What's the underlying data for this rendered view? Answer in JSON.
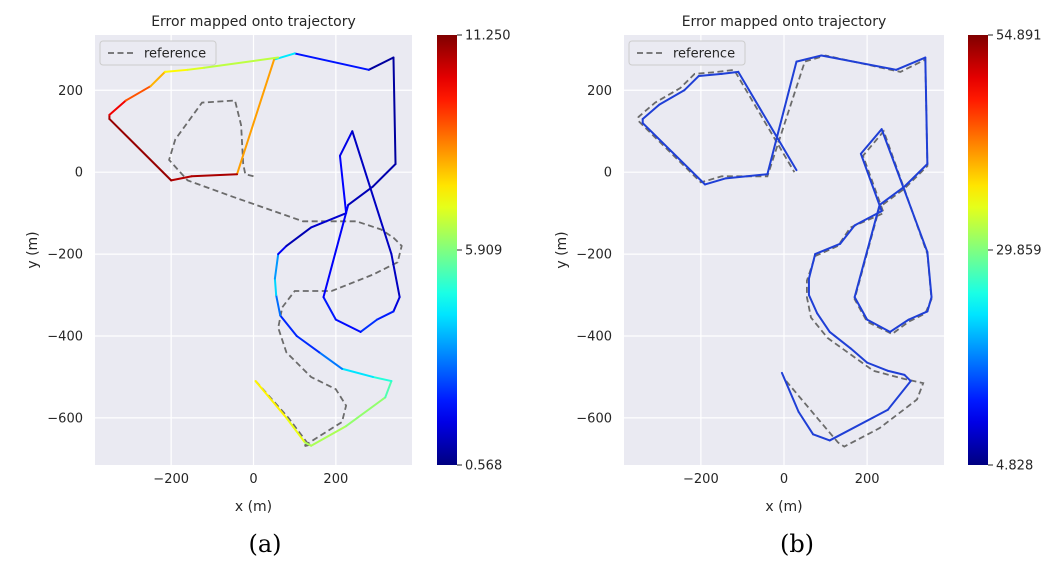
{
  "chart_data": [
    {
      "type": "line",
      "title": "Error mapped onto trajectory",
      "xlabel": "x (m)",
      "ylabel": "y (m)",
      "xlim": [
        -385,
        385
      ],
      "ylim": [
        -715,
        335
      ],
      "xticks": [
        "−200",
        "0",
        "200"
      ],
      "yticks": [
        "200",
        "0",
        "−200",
        "−400",
        "−600"
      ],
      "grid": true,
      "legend": {
        "placement": "top-left",
        "entries": [
          "reference"
        ]
      },
      "colorbar": {
        "min": 0.568,
        "max": 11.25,
        "tick_labels": [
          "11.250",
          "5.909",
          "0.568"
        ]
      },
      "caption": "(a)",
      "series": [
        {
          "name": "reference",
          "style": "dashed",
          "x": [
            5,
            85,
            130,
            140,
            120,
            215,
            225,
            200,
            140,
            80,
            60,
            70,
            100,
            190,
            290,
            350,
            360,
            340,
            310,
            250,
            120,
            -50,
            -160,
            -205,
            -190,
            -125,
            -45,
            -30,
            -25,
            -20,
            0
          ],
          "y": [
            -510,
            -600,
            -660,
            -665,
            -670,
            -610,
            -570,
            -530,
            -500,
            -440,
            -380,
            -330,
            -290,
            -290,
            -250,
            -220,
            -180,
            -160,
            -140,
            -120,
            -120,
            -60,
            -20,
            30,
            80,
            170,
            175,
            115,
            20,
            -5,
            -10
          ]
        },
        {
          "name": "trajectory",
          "x": [
            5,
            80,
            125,
            140,
            225,
            320,
            335,
            290,
            215,
            160,
            105,
            65,
            55,
            52,
            60,
            80,
            140,
            225,
            210,
            240,
            335,
            355,
            340,
            300,
            260,
            200,
            170,
            230,
            290,
            345,
            340,
            280,
            100,
            50,
            -40,
            -150,
            -200,
            -350,
            -350,
            -310,
            -250,
            -215,
            -160,
            -120,
            60
          ],
          "y": [
            -510,
            -600,
            -660,
            -668,
            -620,
            -550,
            -510,
            -500,
            -480,
            -440,
            -400,
            -350,
            -300,
            -260,
            -200,
            -180,
            -135,
            -100,
            40,
            100,
            -200,
            -305,
            -340,
            -360,
            -390,
            -360,
            -305,
            -80,
            -35,
            20,
            280,
            250,
            290,
            275,
            -5,
            -10,
            -20,
            130,
            140,
            175,
            210,
            245,
            250,
            255,
            280
          ],
          "error": [
            7.2,
            7.5,
            6.6,
            6.2,
            6.5,
            5.7,
            5.1,
            4.8,
            3.8,
            2.5,
            2.2,
            2.4,
            3.7,
            4.6,
            2.4,
            1.2,
            1.0,
            1.8,
            2.0,
            1.3,
            1.2,
            1.3,
            1.8,
            2.6,
            2.2,
            1.8,
            2.5,
            1.2,
            1.1,
            1.0,
            0.8,
            1.0,
            3.2,
            5.5,
            11.0,
            10.6,
            10.8,
            11.2,
            10.5,
            9.6,
            8.5,
            7.6,
            7.0,
            6.8,
            6.3
          ]
        }
      ]
    },
    {
      "type": "line",
      "title": "Error mapped onto trajectory",
      "xlabel": "x (m)",
      "ylabel": "y (m)",
      "xlim": [
        -385,
        385
      ],
      "ylim": [
        -715,
        335
      ],
      "xticks": [
        "−200",
        "0",
        "200"
      ],
      "yticks": [
        "200",
        "0",
        "−200",
        "−400",
        "−600"
      ],
      "grid": true,
      "legend": {
        "placement": "top-left",
        "entries": [
          "reference"
        ]
      },
      "colorbar": {
        "min": 4.828,
        "max": 54.891,
        "tick_labels": [
          "54.891",
          "29.859",
          "4.828"
        ]
      },
      "caption": "(b)",
      "series": [
        {
          "name": "reference",
          "style": "dashed",
          "x": [
            5,
            80,
            130,
            145,
            230,
            320,
            335,
            290,
            215,
            160,
            105,
            65,
            55,
            55,
            75,
            130,
            160,
            240,
            190,
            240,
            345,
            355,
            340,
            300,
            260,
            200,
            170,
            230,
            290,
            345,
            340,
            280,
            100,
            50,
            -40,
            -150,
            -200,
            -350,
            -350,
            -310,
            -250,
            -215,
            -160,
            -120,
            25
          ],
          "y": [
            -510,
            -600,
            -660,
            -670,
            -625,
            -555,
            -515,
            -505,
            -485,
            -445,
            -405,
            -355,
            -305,
            -265,
            -205,
            -180,
            -135,
            -100,
            40,
            100,
            -200,
            -310,
            -345,
            -365,
            -395,
            -365,
            -310,
            -85,
            -40,
            15,
            275,
            245,
            285,
            270,
            -10,
            -10,
            -25,
            125,
            135,
            170,
            205,
            240,
            245,
            250,
            0
          ]
        },
        {
          "name": "trajectory",
          "x": [
            -5,
            35,
            70,
            110,
            250,
            305,
            290,
            250,
            200,
            160,
            110,
            80,
            60,
            60,
            75,
            135,
            170,
            235,
            185,
            235,
            345,
            355,
            345,
            300,
            255,
            200,
            170,
            230,
            290,
            345,
            340,
            270,
            90,
            30,
            -40,
            -140,
            -190,
            -340,
            -340,
            -300,
            -240,
            -205,
            -150,
            -110,
            30
          ],
          "y": [
            -490,
            -585,
            -640,
            -655,
            -580,
            -510,
            -495,
            -485,
            -465,
            -430,
            -390,
            -345,
            -300,
            -260,
            -200,
            -175,
            -130,
            -95,
            45,
            105,
            -195,
            -305,
            -340,
            -360,
            -390,
            -360,
            -305,
            -80,
            -35,
            20,
            280,
            250,
            285,
            270,
            -5,
            -15,
            -30,
            120,
            130,
            165,
            200,
            235,
            240,
            245,
            5
          ]
        }
      ]
    }
  ]
}
